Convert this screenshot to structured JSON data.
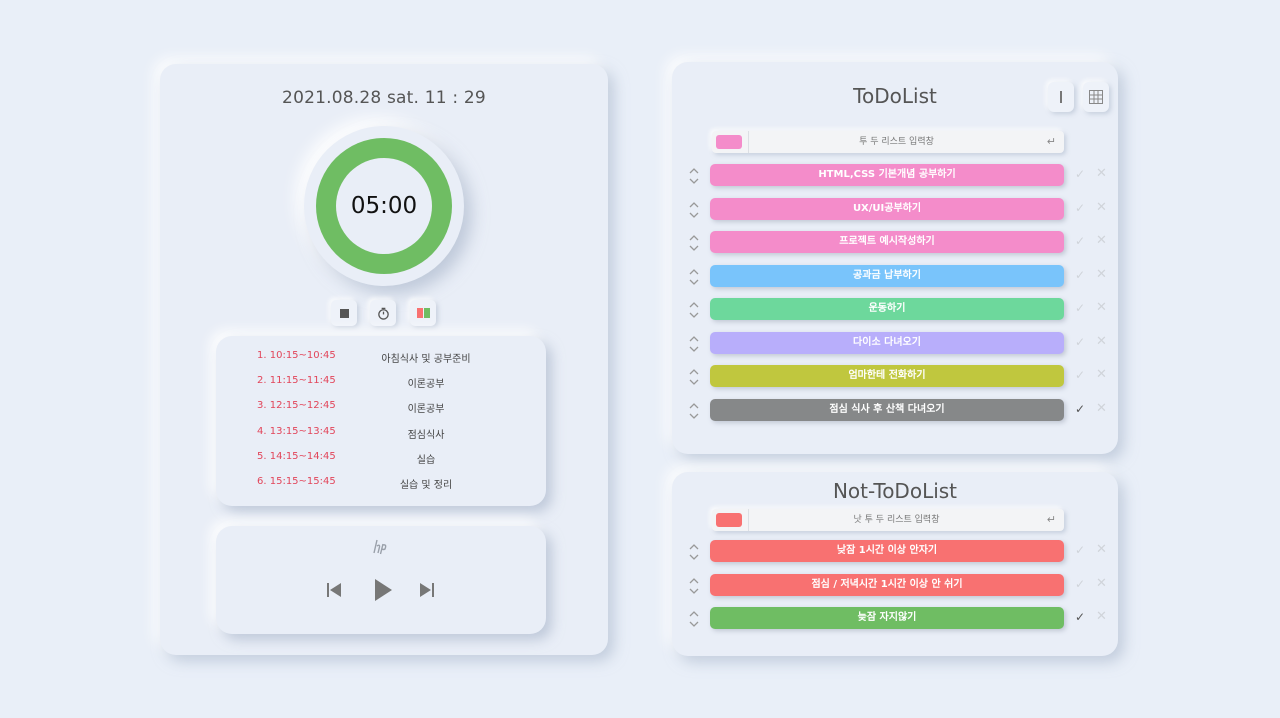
{
  "timer_panel": {
    "datetime": "2021.08.28 sat. 11 : 29",
    "timer": "05:00",
    "timer_color": "#6fbd63",
    "controls": [
      {
        "icon": "stop-icon"
      },
      {
        "icon": "stopwatch-icon"
      },
      {
        "icon": "color-bars-icon"
      }
    ]
  },
  "schedule": [
    {
      "time": "1. 10:15~10:45",
      "task": "아침식사 및 공부준비"
    },
    {
      "time": "2. 11:15~11:45",
      "task": "이론공부"
    },
    {
      "time": "3. 12:15~12:45",
      "task": "이론공부"
    },
    {
      "time": "4. 13:15~13:45",
      "task": "점심식사"
    },
    {
      "time": "5. 14:15~14:45",
      "task": "실습"
    },
    {
      "time": "6. 15:15~15:45",
      "task": "실습 및 정리"
    }
  ],
  "player": {
    "logo_icon": "hp-logo-icon",
    "prev_icon": "skip-previous-icon",
    "play_icon": "play-icon",
    "next_icon": "skip-next-icon"
  },
  "todo": {
    "title": "ToDoList",
    "view_buttons": [
      {
        "icon": "list-view-icon"
      },
      {
        "icon": "grid-view-icon"
      }
    ],
    "input": {
      "placeholder": "투 두 리스트 입력창",
      "swatch_color": "#f48cca"
    },
    "items": [
      {
        "label": "HTML,CSS 기본개념 공부하기",
        "color": "#f48cca",
        "done": false
      },
      {
        "label": "UX/UI공부하기",
        "color": "#f48cca",
        "done": false
      },
      {
        "label": "프로젝트 예시작성하기",
        "color": "#f48cca",
        "done": false
      },
      {
        "label": "공과금 납부하기",
        "color": "#79c4fb",
        "done": false
      },
      {
        "label": "운동하기",
        "color": "#6dd89c",
        "done": false
      },
      {
        "label": "다이소 다녀오기",
        "color": "#b8aefb",
        "done": false
      },
      {
        "label": "엄마한테 전화하기",
        "color": "#c0c73e",
        "done": false
      },
      {
        "label": "점심 식사 후 산책 다녀오기",
        "color": "#868889",
        "done": true
      }
    ]
  },
  "not_todo": {
    "title": "Not-ToDoList",
    "input": {
      "placeholder": "낫 투 두 리스트 입력창",
      "swatch_color": "#f87171"
    },
    "items": [
      {
        "label": "낮잠 1시간 이상 안자기",
        "color": "#f87171",
        "done": false
      },
      {
        "label": "점심 / 저녁시간 1시간 이상 안 쉬기",
        "color": "#f87171",
        "done": false
      },
      {
        "label": "늦잠 자지않기",
        "color": "#6fbd63",
        "done": true
      }
    ]
  },
  "icons": {
    "check": "✓",
    "delete": "✕",
    "enter": "↵"
  }
}
